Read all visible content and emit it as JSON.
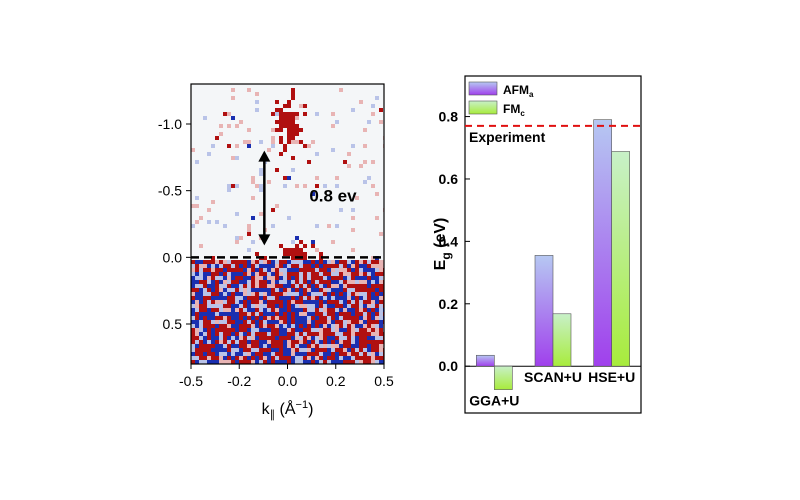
{
  "chart_data": [
    {
      "type": "heatmap",
      "xlabel_main": "k",
      "xlabel_sub": "∥",
      "xlabel_unit": " (Å",
      "xlabel_exp": "−1",
      "xlabel_close": ")",
      "xlim": [
        -0.5,
        0.5
      ],
      "ylim": [
        -1.3,
        0.8
      ],
      "y_inverted": true,
      "xticks": [
        "-0.5",
        "-0.2",
        "0.0",
        "0.2",
        "0.5"
      ],
      "xtick_values": [
        -0.5,
        -0.25,
        0.0,
        0.25,
        0.5
      ],
      "yticks": [
        "-1.0",
        "-0.5",
        "0.0",
        "0.5"
      ],
      "ytick_values": [
        -1.0,
        -0.5,
        0.0,
        0.5
      ],
      "fermi_level": 0.0,
      "annotation": {
        "text": "0.8 ev",
        "arrow_from": -0.8,
        "arrow_to": 0.0,
        "arrow_k": -0.12
      },
      "colors": {
        "positive": "#b01010",
        "negative": "#1a2fb0",
        "background": "#f4f6f8"
      }
    },
    {
      "type": "bar",
      "ylabel_main": "E",
      "ylabel_sub": "g",
      "ylabel_unit": " (eV)",
      "categories": [
        "GGA+U",
        "SCAN+U",
        "HSE+U"
      ],
      "series": [
        {
          "name": "AFM",
          "name_sub": "a",
          "values": [
            0.035,
            0.355,
            0.79
          ],
          "color_top": "#b6c8f2",
          "color_bottom": "#a040ec"
        },
        {
          "name": "FM",
          "name_sub": "c",
          "values": [
            -0.075,
            0.168,
            0.688
          ],
          "color_top": "#c8f0c8",
          "color_bottom": "#a8ec3c"
        }
      ],
      "ylim": [
        -0.15,
        0.93
      ],
      "yticks": [
        "0.0",
        "0.2",
        "0.4",
        "0.6",
        "0.8"
      ],
      "ytick_values": [
        0.0,
        0.2,
        0.4,
        0.6,
        0.8
      ],
      "reference": {
        "label": "Experiment",
        "value": 0.77,
        "color": "#e01010"
      },
      "legend_placement": "top-left"
    }
  ]
}
